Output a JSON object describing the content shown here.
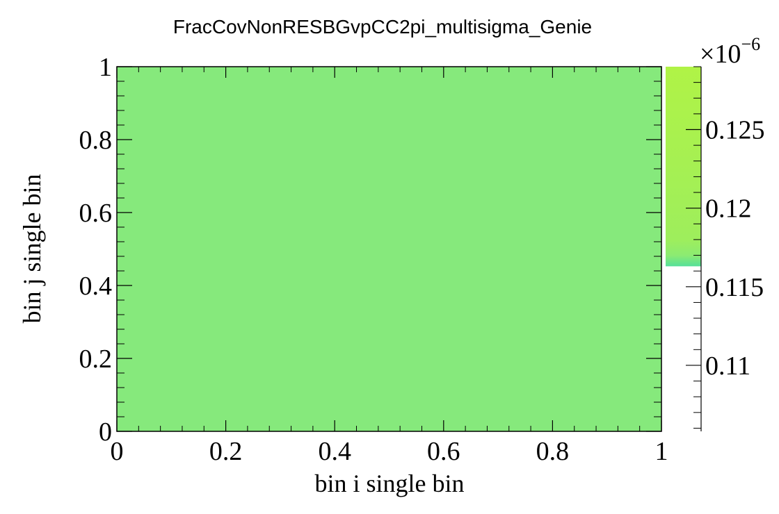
{
  "chart_data": {
    "type": "heatmap",
    "title": "FracCovNonRESBGvpCC2pi_multisigma_Genie",
    "xlabel": "bin i single bin",
    "ylabel": "bin j single bin",
    "xlim": [
      0,
      1
    ],
    "ylim": [
      0,
      1
    ],
    "x_ticks": [
      "0",
      "0.2",
      "0.4",
      "0.6",
      "0.8",
      "1"
    ],
    "y_ticks": [
      "0",
      "0.2",
      "0.4",
      "0.6",
      "0.8",
      "1"
    ],
    "cells": [
      {
        "x": [
          0,
          1
        ],
        "y": [
          0,
          1
        ],
        "value": 0.1163,
        "color": "#86e97c"
      }
    ],
    "colorbar": {
      "multiplier": "×10",
      "exponent": "−6",
      "range": [
        0.1058,
        0.129
      ],
      "ticks": [
        {
          "value": 0.11,
          "label": "0.11"
        },
        {
          "value": 0.115,
          "label": "0.115"
        },
        {
          "value": 0.12,
          "label": "0.12"
        },
        {
          "value": 0.125,
          "label": "0.125"
        }
      ],
      "filled_from": 0.1163,
      "gradient_stops": [
        {
          "value": 0.1163,
          "color": "#55e09a"
        },
        {
          "value": 0.117,
          "color": "#8ceb72"
        },
        {
          "value": 0.118,
          "color": "#9eee5c"
        },
        {
          "value": 0.129,
          "color": "#b0f346"
        }
      ]
    },
    "grid": false
  }
}
